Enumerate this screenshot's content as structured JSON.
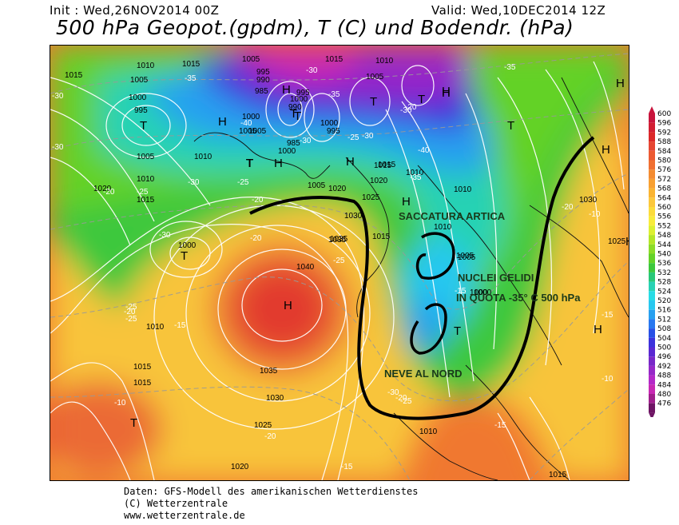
{
  "header": {
    "init": "Init : Wed,26NOV2014 00Z",
    "valid": "Valid: Wed,10DEC2014 12Z",
    "title": "500 hPa Geopot.(gpdm), T (C) und Bodendr. (hPa)"
  },
  "footer": {
    "line1": "Daten: GFS-Modell des amerikanischen Wetterdienstes",
    "line2": "(C) Wetterzentrale",
    "line3": "www.wetterzentrale.de"
  },
  "legend": {
    "values": [
      "600",
      "596",
      "592",
      "588",
      "584",
      "580",
      "576",
      "572",
      "568",
      "564",
      "560",
      "556",
      "552",
      "548",
      "544",
      "540",
      "536",
      "532",
      "528",
      "524",
      "520",
      "516",
      "512",
      "508",
      "504",
      "500",
      "496",
      "492",
      "488",
      "484",
      "480",
      "476"
    ],
    "colors": [
      "#c8143c",
      "#d21e32",
      "#dc2828",
      "#e64632",
      "#ec5a32",
      "#f07032",
      "#f48c32",
      "#f8a032",
      "#fab432",
      "#fcc83c",
      "#fcdc3c",
      "#f8ec3c",
      "#dcf032",
      "#b4e628",
      "#8cdc28",
      "#64d228",
      "#3cc83c",
      "#28c878",
      "#28d2b4",
      "#28dce6",
      "#28c8f0",
      "#28a0f0",
      "#2878f0",
      "#2850e6",
      "#3c32dc",
      "#5a28d2",
      "#7828c8",
      "#9628c8",
      "#b428c8",
      "#c828b4",
      "#a01e8c",
      "#6e1464"
    ]
  },
  "map": {
    "highs": [
      "H",
      "H",
      "H",
      "H",
      "H",
      "H",
      "H",
      "H",
      "H",
      "H",
      "H",
      "H"
    ],
    "lows": [
      "T",
      "T",
      "T",
      "T",
      "T",
      "T",
      "T",
      "T",
      "T",
      "T",
      "T",
      "T",
      "T",
      "T",
      "T"
    ],
    "pressure_labels": [
      "1010",
      "1015",
      "1005",
      "1015",
      "1005",
      "995",
      "990",
      "985",
      "1015",
      "1010",
      "1005",
      "1000",
      "995",
      "1000",
      "995",
      "1005",
      "1000",
      "990",
      "1000",
      "995",
      "1005",
      "1000",
      "985",
      "1010",
      "1005",
      "1010",
      "1015",
      "1020",
      "1025",
      "1035",
      "1030",
      "1015",
      "1020",
      "1005",
      "1000",
      "1010",
      "1015",
      "1010",
      "1005",
      "1000",
      "1035",
      "1040",
      "1030",
      "1025",
      "1035",
      "1020",
      "1010",
      "1015",
      "1015",
      "1010",
      "1005",
      "1000",
      "1030",
      "1025",
      "1010",
      "1015",
      "1020",
      "1015"
    ],
    "temp_labels": [
      "-30",
      "-35",
      "-40",
      "-35",
      "-30",
      "-30",
      "-30",
      "-25",
      "-20",
      "-25",
      "-20",
      "-30",
      "-30",
      "-35",
      "-40",
      "-35",
      "-30",
      "-25",
      "-20",
      "-15",
      "-25",
      "-20",
      "-15",
      "-10",
      "-20",
      "-15",
      "-10",
      "-15",
      "-20",
      "-25",
      "-30",
      "-20",
      "-15",
      "-10",
      "-25",
      "-20",
      "-25",
      "-30"
    ],
    "annotations": {
      "saccatura": "SACCATURA ARTICA",
      "nuclei1": "NUCLEI GELIDI",
      "nuclei2": "IN QUOTA -35° C 500 hPa",
      "neve": "NEVE AL NORD"
    }
  }
}
